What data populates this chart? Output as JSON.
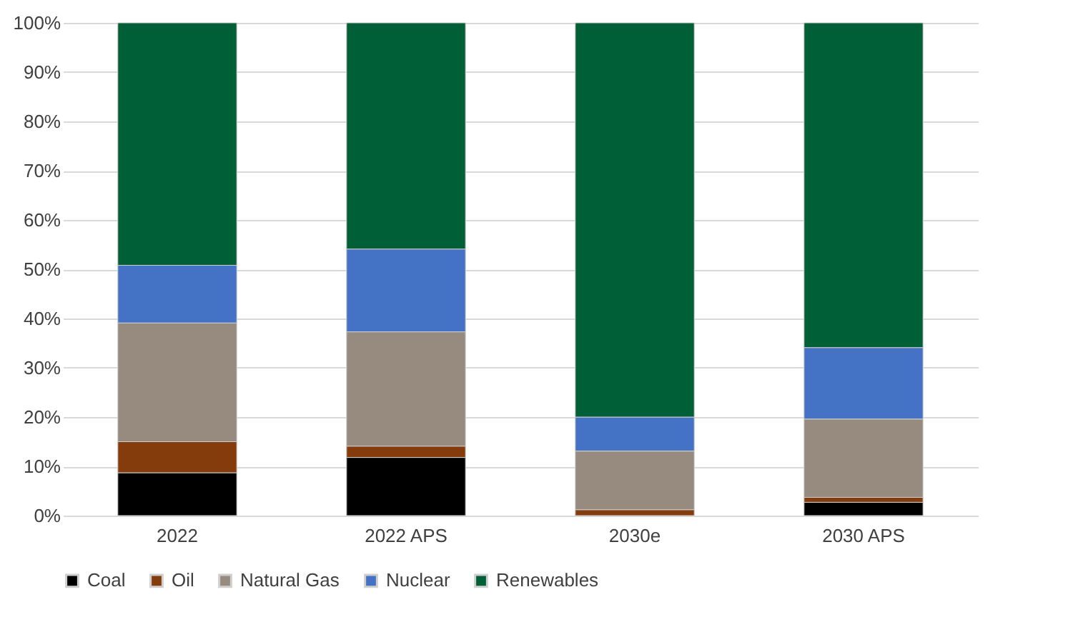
{
  "chart_data": {
    "type": "bar",
    "stacked": true,
    "categories": [
      "2022",
      "2022 APS",
      "2030e",
      "2030 APS"
    ],
    "series": [
      {
        "name": "Coal",
        "color": "#000000",
        "values": [
          8.7,
          11.8,
          0,
          2.7
        ]
      },
      {
        "name": "Oil",
        "color": "#843c0c",
        "values": [
          6.3,
          2.3,
          1.2,
          1.0
        ]
      },
      {
        "name": "Natural Gas",
        "color": "#978b80",
        "values": [
          24.1,
          23.2,
          11.9,
          15.9
        ]
      },
      {
        "name": "Nuclear",
        "color": "#4472c4",
        "values": [
          11.7,
          16.8,
          6.9,
          14.5
        ]
      },
      {
        "name": "Renewables",
        "color": "#005f37",
        "values": [
          49.2,
          45.9,
          80.0,
          65.9
        ]
      }
    ],
    "ylim": [
      0,
      100
    ],
    "yticks": [
      {
        "value": 0,
        "label": "0%"
      },
      {
        "value": 10,
        "label": "10%"
      },
      {
        "value": 20,
        "label": "20%"
      },
      {
        "value": 30,
        "label": "30%"
      },
      {
        "value": 40,
        "label": "40%"
      },
      {
        "value": 50,
        "label": "50%"
      },
      {
        "value": 60,
        "label": "60%"
      },
      {
        "value": 70,
        "label": "70%"
      },
      {
        "value": 80,
        "label": "80%"
      },
      {
        "value": 90,
        "label": "90%"
      },
      {
        "value": 100,
        "label": "100%"
      }
    ],
    "grid": "y",
    "legend": "bottom"
  }
}
